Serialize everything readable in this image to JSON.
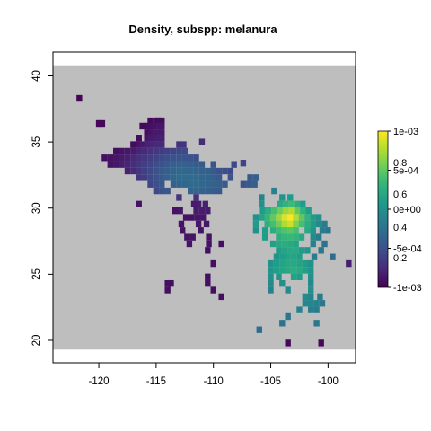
{
  "chart_data": {
    "type": "heatmap",
    "title": "Density, subspp: melanura",
    "xlabel": "",
    "ylabel": "",
    "xlim": [
      -124,
      -97.6
    ],
    "ylim": [
      18.3,
      41.8
    ],
    "x_ticks": [
      -120,
      -115,
      -110,
      -105,
      -100
    ],
    "y_ticks": [
      20,
      25,
      30,
      35,
      40
    ],
    "x_tick_labels": [
      "-120",
      "-115",
      "-110",
      "-105",
      "-100"
    ],
    "y_tick_labels": [
      "20",
      "25",
      "30",
      "35",
      "40"
    ],
    "background_region": {
      "x": [
        -124,
        -97.6
      ],
      "y": [
        19.3,
        40.8
      ],
      "color": "#bebebe"
    },
    "cell_size_deg": [
      0.5,
      0.5
    ],
    "colorscale": "viridis",
    "colorbar": {
      "labels_left": [
        "0.2",
        "0.4",
        "0.6",
        "0.8"
      ],
      "labels_right": [
        "-1e-03",
        "-5e-04",
        "0e+00",
        "5e-04",
        "1e-03"
      ],
      "right_values": [
        -0.001,
        -0.0005,
        0,
        0.0005,
        0.001
      ],
      "left_values": [
        0.2,
        0.4,
        0.6,
        0.8
      ]
    },
    "cells": [
      [
        -121.7,
        38.3,
        0.01
      ],
      [
        -120.0,
        36.4,
        0.02
      ],
      [
        -119.7,
        36.4,
        0.02
      ],
      [
        -115.5,
        36.6,
        0.02
      ],
      [
        -115.0,
        36.6,
        0.03
      ],
      [
        -114.8,
        36.6,
        0.03
      ],
      [
        -114.5,
        36.6,
        0.03
      ],
      [
        -116.2,
        36.2,
        0.02
      ],
      [
        -115.8,
        36.2,
        0.03
      ],
      [
        -115.5,
        36.2,
        0.04
      ],
      [
        -115.2,
        36.2,
        0.05
      ],
      [
        -114.8,
        36.2,
        0.06
      ],
      [
        -114.5,
        36.2,
        0.06
      ],
      [
        -115.8,
        35.7,
        0.03
      ],
      [
        -115.5,
        35.7,
        0.05
      ],
      [
        -115.2,
        35.7,
        0.07
      ],
      [
        -114.8,
        35.7,
        0.07
      ],
      [
        -114.5,
        35.7,
        0.07
      ],
      [
        -116.5,
        35.3,
        0.03
      ],
      [
        -115.8,
        35.3,
        0.05
      ],
      [
        -115.5,
        35.3,
        0.07
      ],
      [
        -115.2,
        35.3,
        0.08
      ],
      [
        -114.8,
        35.3,
        0.09
      ],
      [
        -114.5,
        35.3,
        0.09
      ],
      [
        -111.0,
        35.0,
        0.12
      ],
      [
        -117.0,
        34.8,
        0.03
      ],
      [
        -116.5,
        34.8,
        0.05
      ],
      [
        -116.2,
        34.8,
        0.07
      ],
      [
        -115.8,
        34.8,
        0.09
      ],
      [
        -115.5,
        34.8,
        0.1
      ],
      [
        -115.2,
        34.8,
        0.11
      ],
      [
        -114.8,
        34.8,
        0.12
      ],
      [
        -114.5,
        34.8,
        0.12
      ],
      [
        -113.0,
        34.8,
        0.14
      ],
      [
        -112.6,
        34.8,
        0.15
      ],
      [
        -118.5,
        34.3,
        0.04
      ],
      [
        -118.0,
        34.3,
        0.05
      ],
      [
        -117.5,
        34.3,
        0.06
      ],
      [
        -117.0,
        34.3,
        0.07
      ],
      [
        -116.5,
        34.3,
        0.1
      ],
      [
        -116.0,
        34.3,
        0.12
      ],
      [
        -115.5,
        34.3,
        0.14
      ],
      [
        -115.0,
        34.3,
        0.16
      ],
      [
        -114.5,
        34.3,
        0.18
      ],
      [
        -114.0,
        34.3,
        0.19
      ],
      [
        -113.5,
        34.3,
        0.2
      ],
      [
        -113.0,
        34.3,
        0.21
      ],
      [
        -112.5,
        34.3,
        0.22
      ],
      [
        -119.5,
        33.8,
        0.04
      ],
      [
        -119.0,
        33.8,
        0.05
      ],
      [
        -118.5,
        33.8,
        0.06
      ],
      [
        -118.0,
        33.8,
        0.07
      ],
      [
        -117.5,
        33.8,
        0.09
      ],
      [
        -117.0,
        33.8,
        0.11
      ],
      [
        -116.5,
        33.8,
        0.14
      ],
      [
        -116.0,
        33.8,
        0.16
      ],
      [
        -115.5,
        33.8,
        0.18
      ],
      [
        -115.0,
        33.8,
        0.2
      ],
      [
        -114.5,
        33.8,
        0.22
      ],
      [
        -114.0,
        33.8,
        0.24
      ],
      [
        -113.5,
        33.8,
        0.25
      ],
      [
        -113.0,
        33.8,
        0.26
      ],
      [
        -112.5,
        33.8,
        0.26
      ],
      [
        -112.0,
        33.8,
        0.25
      ],
      [
        -111.5,
        33.8,
        0.24
      ],
      [
        -119.0,
        33.3,
        0.05
      ],
      [
        -118.5,
        33.3,
        0.06
      ],
      [
        -118.0,
        33.3,
        0.08
      ],
      [
        -117.5,
        33.3,
        0.1
      ],
      [
        -117.0,
        33.3,
        0.13
      ],
      [
        -116.5,
        33.3,
        0.16
      ],
      [
        -116.0,
        33.3,
        0.19
      ],
      [
        -115.5,
        33.3,
        0.21
      ],
      [
        -115.0,
        33.3,
        0.24
      ],
      [
        -114.5,
        33.3,
        0.26
      ],
      [
        -114.0,
        33.3,
        0.28
      ],
      [
        -113.5,
        33.3,
        0.3
      ],
      [
        -113.0,
        33.3,
        0.31
      ],
      [
        -112.5,
        33.3,
        0.31
      ],
      [
        -112.0,
        33.3,
        0.3
      ],
      [
        -111.5,
        33.3,
        0.29
      ],
      [
        -111.0,
        33.3,
        0.28
      ],
      [
        -110.0,
        33.3,
        0.26
      ],
      [
        -108.2,
        33.3,
        0.22
      ],
      [
        -107.4,
        33.4,
        0.2
      ],
      [
        -117.5,
        32.8,
        0.09
      ],
      [
        -117.0,
        32.8,
        0.12
      ],
      [
        -116.5,
        32.8,
        0.15
      ],
      [
        -116.0,
        32.8,
        0.19
      ],
      [
        -115.5,
        32.8,
        0.22
      ],
      [
        -115.0,
        32.8,
        0.25
      ],
      [
        -114.5,
        32.8,
        0.28
      ],
      [
        -114.0,
        32.8,
        0.3
      ],
      [
        -113.5,
        32.8,
        0.32
      ],
      [
        -113.0,
        32.8,
        0.33
      ],
      [
        -112.5,
        32.8,
        0.33
      ],
      [
        -112.0,
        32.8,
        0.33
      ],
      [
        -111.5,
        32.8,
        0.32
      ],
      [
        -111.0,
        32.8,
        0.31
      ],
      [
        -110.5,
        32.8,
        0.3
      ],
      [
        -110.0,
        32.8,
        0.28
      ],
      [
        -109.5,
        32.8,
        0.26
      ],
      [
        -109.0,
        32.8,
        0.24
      ],
      [
        -108.5,
        32.8,
        0.22
      ],
      [
        -116.5,
        32.3,
        0.15
      ],
      [
        -116.0,
        32.3,
        0.18
      ],
      [
        -115.5,
        32.3,
        0.22
      ],
      [
        -115.0,
        32.3,
        0.25
      ],
      [
        -114.5,
        32.3,
        0.28
      ],
      [
        -114.0,
        32.3,
        0.31
      ],
      [
        -113.5,
        32.3,
        0.33
      ],
      [
        -113.0,
        32.3,
        0.34
      ],
      [
        -112.5,
        32.3,
        0.35
      ],
      [
        -112.0,
        32.3,
        0.35
      ],
      [
        -111.5,
        32.3,
        0.34
      ],
      [
        -111.0,
        32.3,
        0.33
      ],
      [
        -110.5,
        32.3,
        0.32
      ],
      [
        -110.0,
        32.3,
        0.3
      ],
      [
        -109.5,
        32.3,
        0.28
      ],
      [
        -108.5,
        32.3,
        0.25
      ],
      [
        -106.8,
        32.3,
        0.28
      ],
      [
        -106.3,
        32.3,
        0.3
      ],
      [
        -115.5,
        31.8,
        0.21
      ],
      [
        -115.0,
        31.8,
        0.24
      ],
      [
        -114.5,
        31.8,
        0.27
      ],
      [
        -113.5,
        31.8,
        0.31
      ],
      [
        -113.0,
        31.8,
        0.32
      ],
      [
        -112.5,
        31.8,
        0.33
      ],
      [
        -112.0,
        31.8,
        0.34
      ],
      [
        -111.5,
        31.8,
        0.34
      ],
      [
        -111.0,
        31.8,
        0.33
      ],
      [
        -110.5,
        31.8,
        0.32
      ],
      [
        -110.0,
        31.8,
        0.31
      ],
      [
        -109.5,
        31.8,
        0.3
      ],
      [
        -109.0,
        31.8,
        0.29
      ],
      [
        -107.4,
        31.8,
        0.25
      ],
      [
        -106.9,
        31.8,
        0.28
      ],
      [
        -106.4,
        31.8,
        0.3
      ],
      [
        -115.0,
        31.3,
        0.22
      ],
      [
        -114.5,
        31.3,
        0.25
      ],
      [
        -114.0,
        31.3,
        0.27
      ],
      [
        -112.0,
        31.3,
        0.32
      ],
      [
        -111.5,
        31.3,
        0.32
      ],
      [
        -111.0,
        31.3,
        0.31
      ],
      [
        -110.5,
        31.3,
        0.3
      ],
      [
        -110.0,
        31.3,
        0.29
      ],
      [
        -109.5,
        31.3,
        0.28
      ],
      [
        -104.7,
        31.3,
        0.45
      ],
      [
        -113.0,
        30.8,
        0.15
      ],
      [
        -111.5,
        30.8,
        0.14
      ],
      [
        -105.8,
        30.8,
        0.45
      ],
      [
        -104.0,
        30.8,
        0.52
      ],
      [
        -103.3,
        30.8,
        0.55
      ],
      [
        -116.5,
        30.3,
        0.05
      ],
      [
        -111.7,
        30.3,
        0.07
      ],
      [
        -111.3,
        30.3,
        0.08
      ],
      [
        -110.7,
        30.3,
        0.09
      ],
      [
        -105.8,
        30.3,
        0.5
      ],
      [
        -104.2,
        30.3,
        0.6
      ],
      [
        -103.7,
        30.3,
        0.65
      ],
      [
        -103.2,
        30.3,
        0.68
      ],
      [
        -102.7,
        30.3,
        0.62
      ],
      [
        -102.2,
        30.3,
        0.55
      ],
      [
        -113.4,
        29.8,
        0.05
      ],
      [
        -112.9,
        29.8,
        0.06
      ],
      [
        -111.5,
        29.8,
        0.07
      ],
      [
        -111.0,
        29.8,
        0.08
      ],
      [
        -110.5,
        29.8,
        0.08
      ],
      [
        -105.7,
        29.8,
        0.55
      ],
      [
        -105.2,
        29.8,
        0.62
      ],
      [
        -104.7,
        29.8,
        0.7
      ],
      [
        -104.2,
        29.8,
        0.78
      ],
      [
        -103.7,
        29.8,
        0.85
      ],
      [
        -103.2,
        29.8,
        0.88
      ],
      [
        -102.7,
        29.8,
        0.75
      ],
      [
        -102.2,
        29.8,
        0.65
      ],
      [
        -101.7,
        29.8,
        0.55
      ],
      [
        -112.4,
        29.3,
        0.05
      ],
      [
        -111.9,
        29.3,
        0.05
      ],
      [
        -111.4,
        29.3,
        0.06
      ],
      [
        -110.9,
        29.3,
        0.06
      ],
      [
        -106.3,
        29.3,
        0.5
      ],
      [
        -105.8,
        29.3,
        0.58
      ],
      [
        -105.3,
        29.3,
        0.66
      ],
      [
        -104.8,
        29.3,
        0.75
      ],
      [
        -104.3,
        29.3,
        0.85
      ],
      [
        -103.8,
        29.3,
        0.95
      ],
      [
        -103.3,
        29.3,
        1.0
      ],
      [
        -102.8,
        29.3,
        0.88
      ],
      [
        -102.3,
        29.3,
        0.75
      ],
      [
        -101.8,
        29.3,
        0.65
      ],
      [
        -101.3,
        29.3,
        0.55
      ],
      [
        -100.8,
        29.3,
        0.5
      ],
      [
        -112.8,
        28.8,
        0.05
      ],
      [
        -111.3,
        28.8,
        0.06
      ],
      [
        -110.6,
        28.8,
        0.06
      ],
      [
        -106.3,
        28.8,
        0.55
      ],
      [
        -105.3,
        28.8,
        0.63
      ],
      [
        -104.8,
        28.8,
        0.7
      ],
      [
        -104.3,
        28.8,
        0.78
      ],
      [
        -103.8,
        28.8,
        0.88
      ],
      [
        -103.3,
        28.8,
        0.92
      ],
      [
        -102.8,
        28.8,
        0.8
      ],
      [
        -102.3,
        28.8,
        0.7
      ],
      [
        -101.8,
        28.8,
        0.62
      ],
      [
        -101.3,
        28.8,
        0.55
      ],
      [
        -100.8,
        28.8,
        0.48
      ],
      [
        -100.3,
        28.8,
        0.42
      ],
      [
        -112.7,
        28.3,
        0.05
      ],
      [
        -111.1,
        28.3,
        0.05
      ],
      [
        -106.3,
        28.3,
        0.5
      ],
      [
        -105.5,
        28.3,
        0.56
      ],
      [
        -104.8,
        28.3,
        0.62
      ],
      [
        -104.3,
        28.3,
        0.68
      ],
      [
        -103.8,
        28.3,
        0.72
      ],
      [
        -103.3,
        28.3,
        0.74
      ],
      [
        -102.8,
        28.3,
        0.7
      ],
      [
        -101.8,
        28.3,
        0.6
      ],
      [
        -101.3,
        28.3,
        0.52
      ],
      [
        -100.5,
        28.3,
        0.42
      ],
      [
        -100.0,
        28.3,
        0.38
      ],
      [
        -112.3,
        27.8,
        0.05
      ],
      [
        -111.8,
        27.8,
        0.05
      ],
      [
        -110.4,
        27.8,
        0.05
      ],
      [
        -105.5,
        27.8,
        0.55
      ],
      [
        -104.3,
        27.8,
        0.62
      ],
      [
        -103.8,
        27.8,
        0.66
      ],
      [
        -103.3,
        27.8,
        0.67
      ],
      [
        -102.8,
        27.8,
        0.65
      ],
      [
        -102.3,
        27.8,
        0.6
      ],
      [
        -101.3,
        27.8,
        0.48
      ],
      [
        -100.8,
        27.8,
        0.42
      ],
      [
        -112.1,
        27.3,
        0.05
      ],
      [
        -110.4,
        27.3,
        0.05
      ],
      [
        -109.3,
        27.3,
        0.04
      ],
      [
        -104.8,
        27.3,
        0.57
      ],
      [
        -104.3,
        27.3,
        0.6
      ],
      [
        -103.8,
        27.3,
        0.62
      ],
      [
        -103.3,
        27.3,
        0.6
      ],
      [
        -102.8,
        27.3,
        0.58
      ],
      [
        -101.3,
        27.3,
        0.45
      ],
      [
        -100.3,
        27.3,
        0.38
      ],
      [
        -110.5,
        26.8,
        0.04
      ],
      [
        -104.3,
        26.8,
        0.55
      ],
      [
        -103.8,
        26.8,
        0.58
      ],
      [
        -103.3,
        26.8,
        0.6
      ],
      [
        -102.8,
        26.8,
        0.6
      ],
      [
        -102.3,
        26.8,
        0.55
      ],
      [
        -101.8,
        26.8,
        0.52
      ],
      [
        -100.6,
        26.8,
        0.4
      ],
      [
        -104.5,
        26.3,
        0.52
      ],
      [
        -104.0,
        26.3,
        0.55
      ],
      [
        -103.5,
        26.3,
        0.58
      ],
      [
        -103.0,
        26.3,
        0.58
      ],
      [
        -102.5,
        26.3,
        0.56
      ],
      [
        -101.2,
        26.3,
        0.42
      ],
      [
        -99.6,
        26.3,
        0.35
      ],
      [
        -110.0,
        25.8,
        0.04
      ],
      [
        -105.0,
        25.8,
        0.5
      ],
      [
        -104.5,
        25.8,
        0.55
      ],
      [
        -104.0,
        25.8,
        0.58
      ],
      [
        -103.5,
        25.8,
        0.6
      ],
      [
        -103.0,
        25.8,
        0.6
      ],
      [
        -102.5,
        25.8,
        0.58
      ],
      [
        -102.0,
        25.8,
        0.55
      ],
      [
        -101.5,
        25.8,
        0.5
      ],
      [
        -98.2,
        25.8,
        0.08
      ],
      [
        -105.0,
        25.3,
        0.52
      ],
      [
        -104.5,
        25.3,
        0.56
      ],
      [
        -104.0,
        25.3,
        0.58
      ],
      [
        -103.5,
        25.3,
        0.6
      ],
      [
        -103.0,
        25.3,
        0.62
      ],
      [
        -102.5,
        25.3,
        0.6
      ],
      [
        -102.0,
        25.3,
        0.56
      ],
      [
        -101.5,
        25.3,
        0.52
      ],
      [
        -110.5,
        24.8,
        0.04
      ],
      [
        -105.0,
        24.8,
        0.5
      ],
      [
        -104.3,
        24.8,
        0.52
      ],
      [
        -103.0,
        24.8,
        0.58
      ],
      [
        -102.5,
        24.8,
        0.55
      ],
      [
        -101.5,
        24.8,
        0.5
      ],
      [
        -114.0,
        24.3,
        0.04
      ],
      [
        -113.7,
        24.3,
        0.04
      ],
      [
        -110.5,
        24.3,
        0.04
      ],
      [
        -105.0,
        24.3,
        0.48
      ],
      [
        -104.0,
        24.3,
        0.5
      ],
      [
        -101.5,
        24.3,
        0.48
      ],
      [
        -114.0,
        23.8,
        0.04
      ],
      [
        -110.0,
        23.8,
        0.04
      ],
      [
        -105.0,
        23.8,
        0.45
      ],
      [
        -103.5,
        23.8,
        0.48
      ],
      [
        -101.5,
        23.8,
        0.5
      ],
      [
        -109.3,
        23.3,
        0.04
      ],
      [
        -102.0,
        23.3,
        0.48
      ],
      [
        -101.5,
        23.3,
        0.45
      ],
      [
        -100.7,
        23.3,
        0.42
      ],
      [
        -102.0,
        22.8,
        0.46
      ],
      [
        -101.5,
        22.8,
        0.46
      ],
      [
        -101.0,
        22.8,
        0.45
      ],
      [
        -100.5,
        22.8,
        0.4
      ],
      [
        -102.5,
        22.3,
        0.45
      ],
      [
        -101.5,
        22.3,
        0.43
      ],
      [
        -101.0,
        22.3,
        0.42
      ],
      [
        -103.5,
        21.8,
        0.4
      ],
      [
        -104.0,
        21.3,
        0.38
      ],
      [
        -101.0,
        21.3,
        0.4
      ],
      [
        -106.0,
        20.8,
        0.35
      ],
      [
        -103.5,
        19.8,
        0.02
      ],
      [
        -100.6,
        19.8,
        0.02
      ]
    ]
  }
}
